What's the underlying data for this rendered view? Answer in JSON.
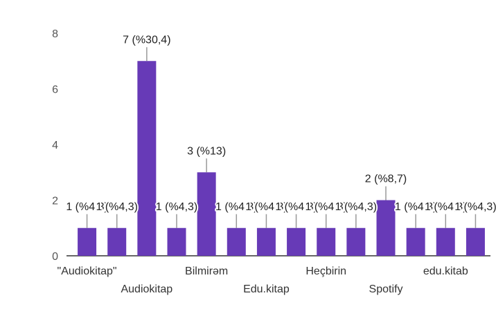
{
  "chart_data": {
    "type": "bar",
    "color": "#673AB7",
    "categories": [
      "\"Audiokitap\"",
      "",
      "Audiokitap",
      "",
      "Bilmirəm",
      "",
      "Edu.kitap",
      "",
      "Heçbirin",
      "",
      "Spotify",
      "",
      "edu.kitab",
      ""
    ],
    "values": [
      1,
      1,
      7,
      1,
      3,
      1,
      1,
      1,
      1,
      1,
      2,
      1,
      1,
      1
    ],
    "data_labels": [
      "1 (%4,3)",
      "1 (%4,3)",
      "7 (%30,4)",
      "1 (%4,3)",
      "3 (%13)",
      "1 (%4,3)",
      "1 (%4,3)",
      "1 (%4,3)",
      "1 (%4,3)",
      "1 (%4,3)",
      "2 (%8,7)",
      "1 (%4,3)",
      "1 (%4,3)",
      "1 (%4,3)"
    ],
    "yticks": [
      0,
      2,
      4,
      6,
      8
    ],
    "ylim": [
      0,
      8
    ],
    "grid": false
  }
}
